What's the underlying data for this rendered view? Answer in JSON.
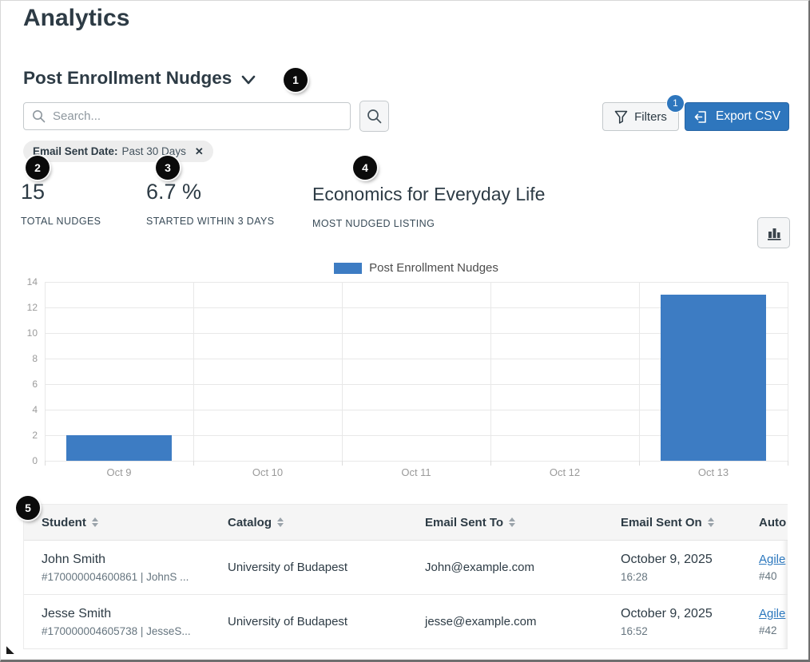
{
  "page": {
    "title": "Analytics"
  },
  "report": {
    "selector_label": "Post Enrollment Nudges",
    "search_placeholder": "Search...",
    "filters_label": "Filters",
    "filters_badge": "1",
    "export_label": "Export CSV",
    "filter_chip": {
      "name": "Email Sent Date:",
      "value": "Past 30 Days"
    }
  },
  "annotations": [
    "1",
    "2",
    "3",
    "4",
    "5"
  ],
  "stats": [
    {
      "value": "15",
      "label": "TOTAL NUDGES"
    },
    {
      "value": "6.7 %",
      "label": "STARTED WITHIN 3 DAYS"
    },
    {
      "value": "Economics for Everyday Life",
      "label": "MOST NUDGED LISTING"
    }
  ],
  "colors": {
    "accent_blue": "#2e76bd",
    "bar_blue": "#3d7cc3",
    "link_blue": "#2b77bd",
    "text_dark": "#2d3b45"
  },
  "chart_data": {
    "type": "bar",
    "title": "",
    "categories": [
      "Oct 9",
      "Oct 10",
      "Oct 11",
      "Oct 12",
      "Oct 13"
    ],
    "values": [
      2,
      0,
      0,
      0,
      13
    ],
    "series_name": "Post Enrollment Nudges",
    "xlabel": "",
    "ylabel": "",
    "ylim": [
      0,
      14
    ],
    "ytick_step": 2,
    "grid": true,
    "legend_position": "top",
    "bar_color": "#3d7cc3"
  },
  "table": {
    "columns": [
      {
        "label": "Student",
        "sortable": true
      },
      {
        "label": "Catalog",
        "sortable": true
      },
      {
        "label": "Email Sent To",
        "sortable": true
      },
      {
        "label": "Email Sent On",
        "sortable": true
      },
      {
        "label": "Auto",
        "sortable": false
      }
    ],
    "rows": [
      {
        "student_name": "John Smith",
        "student_id": "#170000004600861 | JohnS ...",
        "catalog": "University of Budapest",
        "email": "John@example.com",
        "date": "October 9, 2025",
        "time": "16:28",
        "automation_link": "Agile",
        "automation_id": "#40"
      },
      {
        "student_name": "Jesse Smith",
        "student_id": "#170000004605738 | JesseS...",
        "catalog": "University of Budapest",
        "email": "jesse@example.com",
        "date": "October 9, 2025",
        "time": "16:52",
        "automation_link": "Agile",
        "automation_id": "#42"
      }
    ]
  }
}
